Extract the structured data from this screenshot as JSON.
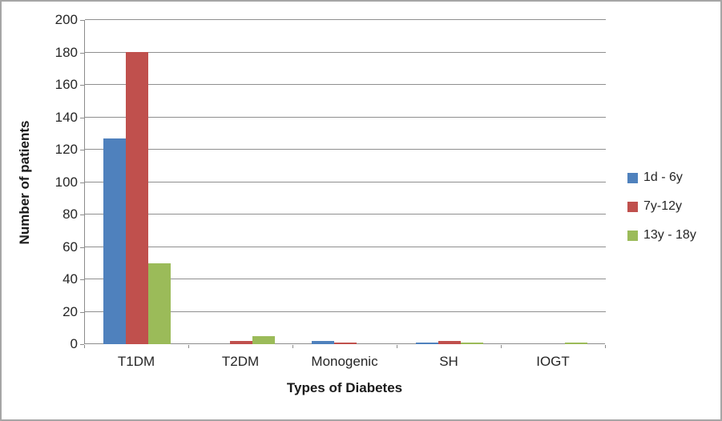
{
  "chart_data": {
    "type": "bar",
    "title": "",
    "xlabel": "Types of Diabetes",
    "ylabel": "Number of patients",
    "categories": [
      "T1DM",
      "T2DM",
      "Monogenic",
      "SH",
      "IOGT"
    ],
    "series": [
      {
        "name": "1d - 6y",
        "color": "#4F81BD",
        "values": [
          127,
          0,
          2,
          1,
          0
        ]
      },
      {
        "name": "7y-12y",
        "color": "#C0504D",
        "values": [
          180,
          2,
          1,
          2,
          0
        ]
      },
      {
        "name": "13y - 18y",
        "color": "#9BBB59",
        "values": [
          50,
          5,
          0,
          1,
          1
        ]
      }
    ],
    "ylim": [
      0,
      200
    ],
    "ytick_step": 20,
    "grid": "horizontal",
    "legend_position": "right"
  },
  "colors": {
    "background": "#FFFFFF",
    "border": "#A6A6A6",
    "gridline": "#8F8F8F",
    "axis": "#8C8C8C",
    "text": "#262626"
  }
}
